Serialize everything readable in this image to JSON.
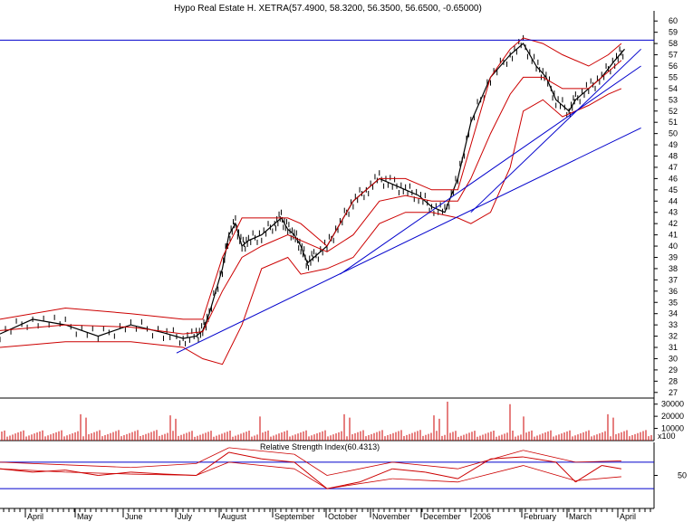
{
  "chart_data": {
    "type": "line",
    "title": "Hypo Real Estate H. XETRA(57.4900, 58.3200, 56.3500, 56.6500, -0.65000)",
    "price_panel": {
      "y_ticks": [
        27,
        28,
        29,
        30,
        31,
        32,
        33,
        34,
        35,
        36,
        37,
        38,
        39,
        40,
        41,
        42,
        43,
        44,
        45,
        46,
        47,
        48,
        49,
        50,
        51,
        52,
        53,
        54,
        55,
        56,
        57,
        58,
        59,
        60
      ],
      "ylim": [
        26.5,
        60.5
      ],
      "series": [
        {
          "type": "close",
          "color": "#000000",
          "x": [
            0,
            0.05,
            0.1,
            0.15,
            0.2,
            0.25,
            0.28,
            0.3,
            0.31,
            0.32,
            0.34,
            0.35,
            0.36,
            0.37,
            0.38,
            0.4,
            0.42,
            0.43,
            0.44,
            0.45,
            0.46,
            0.47,
            0.48,
            0.5,
            0.52,
            0.54,
            0.56,
            0.58,
            0.6,
            0.62,
            0.64,
            0.66,
            0.68,
            0.7,
            0.72,
            0.75,
            0.78,
            0.8,
            0.82,
            0.835,
            0.85,
            0.87,
            0.88,
            0.9,
            0.92,
            0.94,
            0.955
          ],
          "y": [
            32.2,
            33.5,
            33.0,
            32.0,
            33.0,
            32.3,
            31.8,
            32.0,
            32.5,
            34,
            38,
            41,
            42,
            40,
            40.5,
            41,
            42,
            42.5,
            41.5,
            41,
            40,
            38.5,
            39,
            40,
            42,
            44,
            45,
            46,
            45.5,
            45,
            44.5,
            43.5,
            43,
            46,
            51,
            55,
            57,
            58,
            56,
            55,
            53,
            52,
            53,
            54,
            55,
            56.5,
            57.5
          ]
        },
        {
          "type": "bollinger",
          "color": "#cc0000",
          "x": [
            0,
            0.1,
            0.2,
            0.28,
            0.31,
            0.34,
            0.37,
            0.4,
            0.44,
            0.46,
            0.5,
            0.54,
            0.58,
            0.62,
            0.66,
            0.7,
            0.72,
            0.75,
            0.78,
            0.8,
            0.83,
            0.86,
            0.9,
            0.93,
            0.95
          ],
          "y": [
            33.5,
            34.5,
            34.0,
            33.5,
            33.5,
            39,
            42.5,
            42.5,
            42.5,
            42,
            40,
            44,
            46,
            46,
            45,
            45,
            49,
            55,
            57.5,
            58.5,
            58,
            57,
            56,
            57,
            58
          ]
        },
        {
          "type": "bollinger",
          "color": "#cc0000",
          "x": [
            0,
            0.1,
            0.2,
            0.28,
            0.31,
            0.34,
            0.37,
            0.4,
            0.44,
            0.46,
            0.5,
            0.54,
            0.58,
            0.62,
            0.66,
            0.7,
            0.72,
            0.75,
            0.78,
            0.8,
            0.83,
            0.86,
            0.9,
            0.93,
            0.95
          ],
          "y": [
            32.5,
            33,
            32.8,
            32.2,
            32.4,
            36,
            39,
            40,
            41,
            40.5,
            39.5,
            41,
            44,
            44.5,
            44,
            44,
            46,
            50,
            53.5,
            55,
            55,
            54,
            54,
            55.5,
            56.5
          ]
        },
        {
          "type": "bollinger",
          "color": "#cc0000",
          "x": [
            0,
            0.1,
            0.2,
            0.28,
            0.31,
            0.34,
            0.37,
            0.4,
            0.44,
            0.46,
            0.5,
            0.54,
            0.58,
            0.62,
            0.66,
            0.7,
            0.72,
            0.75,
            0.78,
            0.8,
            0.83,
            0.86,
            0.9,
            0.93,
            0.95
          ],
          "y": [
            31,
            31.5,
            31.5,
            31,
            30,
            29.5,
            33,
            38,
            39,
            37.5,
            38,
            39,
            42,
            43,
            43,
            42.5,
            42,
            43,
            47,
            52,
            53,
            51.5,
            52.5,
            53.5,
            54
          ]
        },
        {
          "type": "trendline",
          "color": "#0000cc",
          "x": [
            0.27,
            0.98
          ],
          "y": [
            30.5,
            50.5
          ]
        },
        {
          "type": "trendline",
          "color": "#0000cc",
          "x": [
            0.52,
            0.98
          ],
          "y": [
            37.5,
            56
          ]
        },
        {
          "type": "trendline",
          "color": "#0000cc",
          "x": [
            0.72,
            0.98
          ],
          "y": [
            43,
            57.5
          ]
        },
        {
          "type": "hline",
          "color": "#0000cc",
          "y": [
            58.3
          ]
        }
      ]
    },
    "volume_panel": {
      "y_ticks": [
        10000,
        20000,
        30000
      ],
      "tick_labels": [
        "10000",
        "20000",
        "30000"
      ],
      "scale_label": "x100",
      "color": "#cc0000"
    },
    "rsi_panel": {
      "label": "Relative Strength Index(60.4313)",
      "y_ticks": [
        50
      ],
      "overbought": 70,
      "oversold": 30,
      "color": "#cc0000"
    },
    "x_labels": [
      "April",
      "May",
      "June",
      "July",
      "August",
      "September",
      "October",
      "November",
      "December",
      "2006",
      "February",
      "March",
      "April"
    ]
  }
}
